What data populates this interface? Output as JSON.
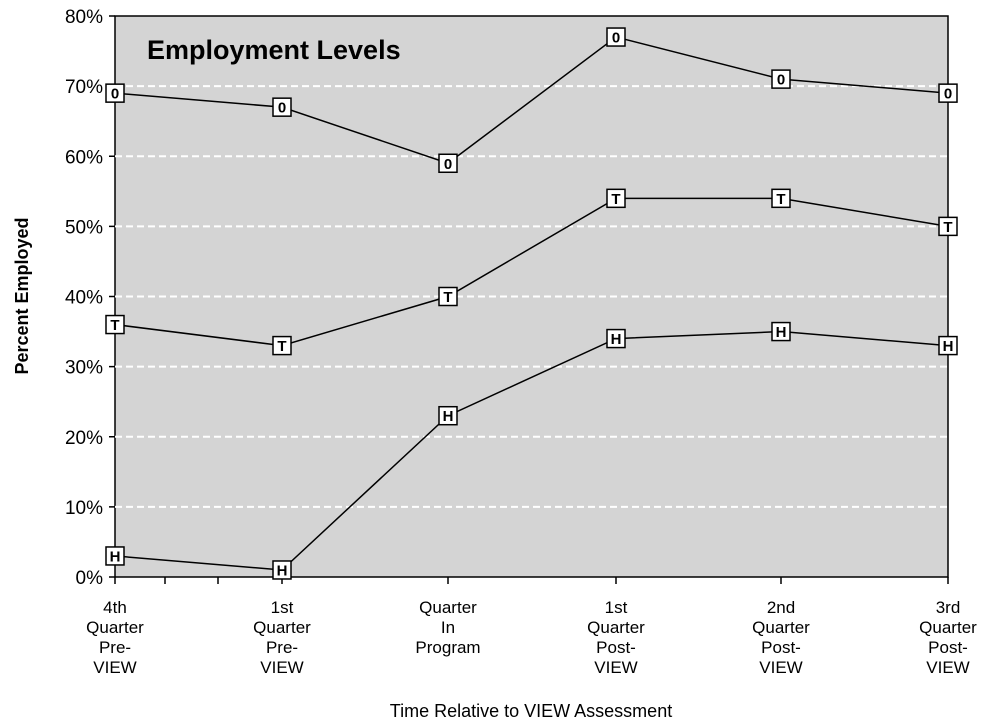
{
  "chart_data": {
    "type": "line",
    "title": "Employment Levels",
    "xlabel": "Time Relative to VIEW Assessment",
    "ylabel": "Percent Employed",
    "ylim": [
      0,
      80
    ],
    "yticks": [
      "0%",
      "10%",
      "20%",
      "30%",
      "40%",
      "50%",
      "60%",
      "70%",
      "80%"
    ],
    "grid": true,
    "categories": [
      [
        "4th",
        "Quarter",
        "Pre-",
        "VIEW"
      ],
      [
        "1st",
        "Quarter",
        "Pre-",
        "VIEW"
      ],
      [
        "Quarter",
        "In",
        "Program"
      ],
      [
        "1st",
        "Quarter",
        "Post-",
        "VIEW"
      ],
      [
        "2nd",
        "Quarter",
        "Post-",
        "VIEW"
      ],
      [
        "3rd",
        "Quarter",
        "Post-",
        "VIEW"
      ]
    ],
    "series": [
      {
        "marker": "0",
        "values": [
          69,
          67,
          59,
          77,
          71,
          69
        ]
      },
      {
        "marker": "T",
        "values": [
          36,
          33,
          40,
          54,
          54,
          50
        ]
      },
      {
        "marker": "H",
        "values": [
          3,
          1,
          23,
          34,
          35,
          33
        ]
      }
    ],
    "colors": {
      "plot_background": "#d4d4d4",
      "gridline": "#ffffff",
      "line": "#000000",
      "marker_fill": "#ffffff"
    }
  }
}
